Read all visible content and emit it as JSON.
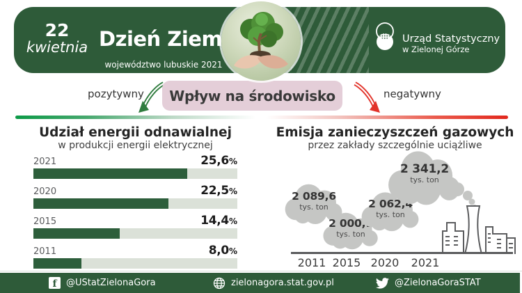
{
  "header": {
    "date_day": "22",
    "date_month": "kwietnia",
    "title": "Dzień Ziemi",
    "subtitle": "województwo lubuskie 2021",
    "logo_line1": "Urząd Statystyczny",
    "logo_line2": "w Zielonej Górze"
  },
  "impact": {
    "title": "Wpływ na środowisko",
    "positive": "pozytywny",
    "negative": "negatywny"
  },
  "chart_data": [
    {
      "type": "bar",
      "orientation": "horizontal",
      "title": "Udział energii odnawialnej",
      "subtitle": "w produkcji energii elektrycznej",
      "unit": "%",
      "categories": [
        "2021",
        "2020",
        "2015",
        "2011"
      ],
      "values": [
        25.6,
        22.5,
        14.4,
        8.0
      ],
      "value_labels": [
        "25,6",
        "22,5",
        "14,4",
        "8,0"
      ],
      "xlim": [
        0,
        34
      ],
      "bar_color": "#2d5e3b",
      "track_color": "#dbe1d8"
    },
    {
      "type": "pictorial",
      "shape": "clouds",
      "title": "Emisja zanieczyszczeń gazowych",
      "subtitle": "przez zakłady szczególnie uciążliwe",
      "unit": "tys. ton",
      "categories": [
        "2011",
        "2015",
        "2020",
        "2021"
      ],
      "values": [
        2089.6,
        2000.1,
        2062.4,
        2341.2
      ],
      "value_labels": [
        "2 089,6",
        "2 000,1",
        "2 062,4",
        "2 341,2"
      ],
      "cloud_color": "#c5c6c4"
    }
  ],
  "footer": {
    "facebook": "@UStatZielonaGora",
    "website": "zielonagora.stat.gov.pl",
    "twitter": "@ZielonaGoraSTAT"
  },
  "colors": {
    "brand_green": "#2e5b39",
    "arrow_green": "#2f7c3e",
    "arrow_red": "#e2332a",
    "pink_box": "#e4ced8"
  }
}
